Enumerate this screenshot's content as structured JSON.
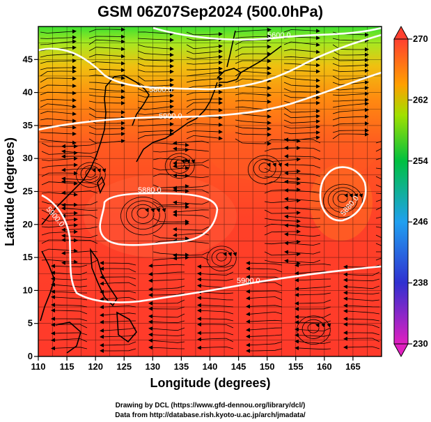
{
  "title": "GSM 06Z07Sep2024 (500.0hPa)",
  "x_axis": {
    "label": "Longitude (degrees)",
    "range": [
      110,
      170
    ],
    "ticks": [
      "110",
      "115",
      "120",
      "125",
      "130",
      "135",
      "140",
      "145",
      "150",
      "155",
      "160",
      "165"
    ]
  },
  "y_axis": {
    "label": "Latitude (degrees)",
    "range": [
      0,
      50
    ],
    "ticks": [
      "0",
      "5",
      "10",
      "15",
      "20",
      "25",
      "30",
      "35",
      "40",
      "45"
    ]
  },
  "colorbar": {
    "range": [
      230,
      270
    ],
    "ticks": [
      "230",
      "238",
      "246",
      "254",
      "262",
      "270"
    ],
    "colors": [
      "#e020c0",
      "#3030d0",
      "#20a0f0",
      "#00c040",
      "#a0e000",
      "#ffa000",
      "#ff4030"
    ]
  },
  "contours": {
    "color": "#ffffff",
    "labels": [
      "5600.0",
      "5800.0",
      "5900.0",
      "5900.0",
      "5880.0",
      "5880.0",
      "5900.0"
    ]
  },
  "credits": {
    "line1": "Drawing by DCL (https://www.gfd-dennou.org/library/dcl/)",
    "line2": "Data from http://database.rish.kyoto-u.ac.jp/arch/jmadata/"
  }
}
